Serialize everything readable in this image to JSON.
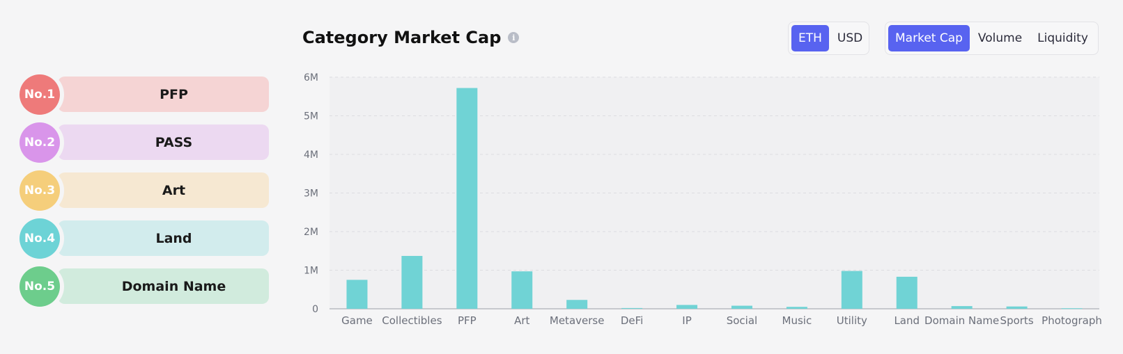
{
  "ranking": [
    {
      "badge": "No.1",
      "label": "PFP",
      "badge_color": "#ee7a7a",
      "pill_color": "#f5d4d4"
    },
    {
      "badge": "No.2",
      "label": "PASS",
      "badge_color": "#d995ea",
      "pill_color": "#ecd9f1"
    },
    {
      "badge": "No.3",
      "label": "Art",
      "badge_color": "#f5ce7b",
      "pill_color": "#f6e8d2"
    },
    {
      "badge": "No.4",
      "label": "Land",
      "badge_color": "#6dd3d6",
      "pill_color": "#d2eced"
    },
    {
      "badge": "No.5",
      "label": "Domain Name",
      "badge_color": "#6dcd8c",
      "pill_color": "#d1ebdd"
    }
  ],
  "header": {
    "title": "Category Market Cap",
    "info_icon": "info-icon"
  },
  "currency_toggle": {
    "options": [
      "ETH",
      "USD"
    ],
    "selected": "ETH"
  },
  "metric_toggle": {
    "options": [
      "Market Cap",
      "Volume",
      "Liquidity"
    ],
    "selected": "Market Cap"
  },
  "colors": {
    "accent": "#5863f0",
    "bar": "#70d3d5",
    "plot_bg": "#f0f0f2"
  },
  "chart_data": {
    "type": "bar",
    "categories": [
      "Game",
      "Collectibles",
      "PFP",
      "Art",
      "Metaverse",
      "DeFi",
      "IP",
      "Social",
      "Music",
      "Utility",
      "Land",
      "Domain Name",
      "Sports",
      "Photograph"
    ],
    "values": [
      750000,
      1370000,
      5720000,
      970000,
      230000,
      20000,
      100000,
      80000,
      50000,
      980000,
      830000,
      70000,
      60000,
      15000
    ],
    "ylim": [
      0,
      6000000
    ],
    "yticks": [
      0,
      1000000,
      2000000,
      3000000,
      4000000,
      5000000,
      6000000
    ],
    "ytick_labels": [
      "0",
      "1M",
      "2M",
      "3M",
      "4M",
      "5M",
      "6M"
    ],
    "grid": true,
    "unit": "ETH"
  }
}
